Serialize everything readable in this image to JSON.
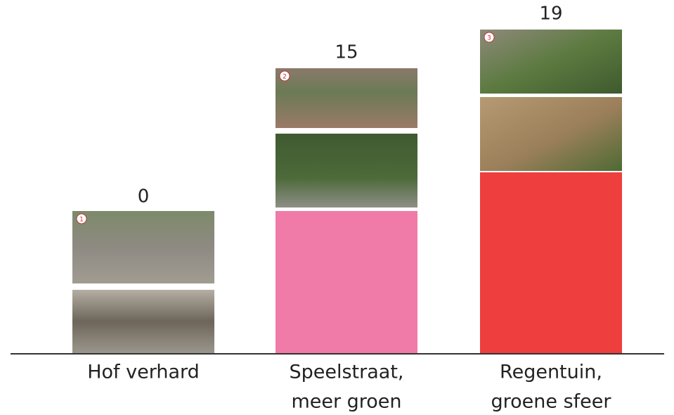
{
  "columns": [
    {
      "value": 0,
      "badge": 1,
      "label_lines": [
        "Hof verhard"
      ]
    },
    {
      "value": 15,
      "badge": 2,
      "label_lines": [
        "Speelstraat,",
        "meer groen"
      ]
    },
    {
      "value": 19,
      "badge": 3,
      "label_lines": [
        "Regentuin,",
        "groene sfeer"
      ]
    }
  ]
}
